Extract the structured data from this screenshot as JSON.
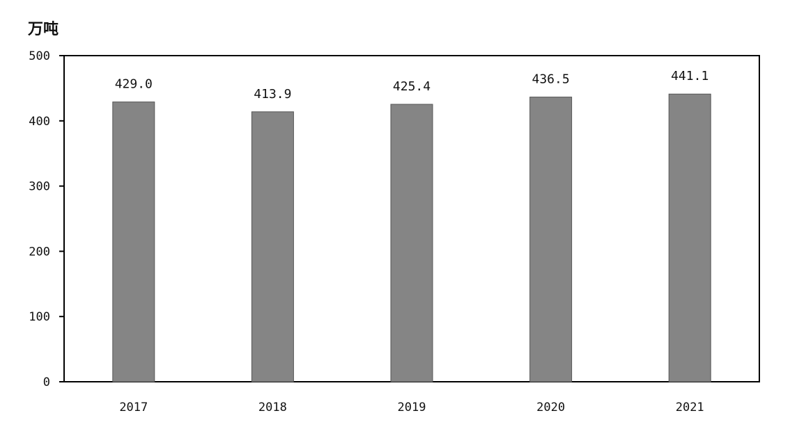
{
  "chart_data": {
    "type": "bar",
    "unit": "万吨",
    "categories": [
      "2017",
      "2018",
      "2019",
      "2020",
      "2021"
    ],
    "values": [
      429.0,
      413.9,
      425.4,
      436.5,
      441.1
    ],
    "value_labels": [
      "429.0",
      "413.9",
      "425.4",
      "436.5",
      "441.1"
    ],
    "ylim": [
      0,
      500
    ],
    "yticks": [
      0,
      100,
      200,
      300,
      400,
      500
    ],
    "bar_color": "#858585",
    "grid": false,
    "legend": "none"
  }
}
